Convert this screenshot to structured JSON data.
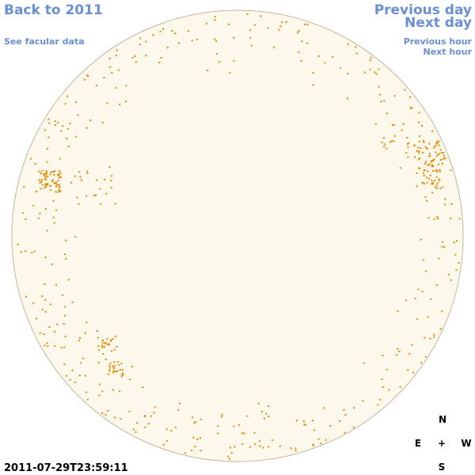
{
  "links": {
    "back": "Back to 2011",
    "facular": "See facular data",
    "previous_day": "Previous day",
    "next_day": "Next day",
    "previous_hour": "Previous hour",
    "next_hour": "Next hour"
  },
  "timestamp": "2011-07-29T23:59:11",
  "compass": {
    "north": "N",
    "east": "E",
    "center": "+",
    "west": "W",
    "south": "S"
  }
}
